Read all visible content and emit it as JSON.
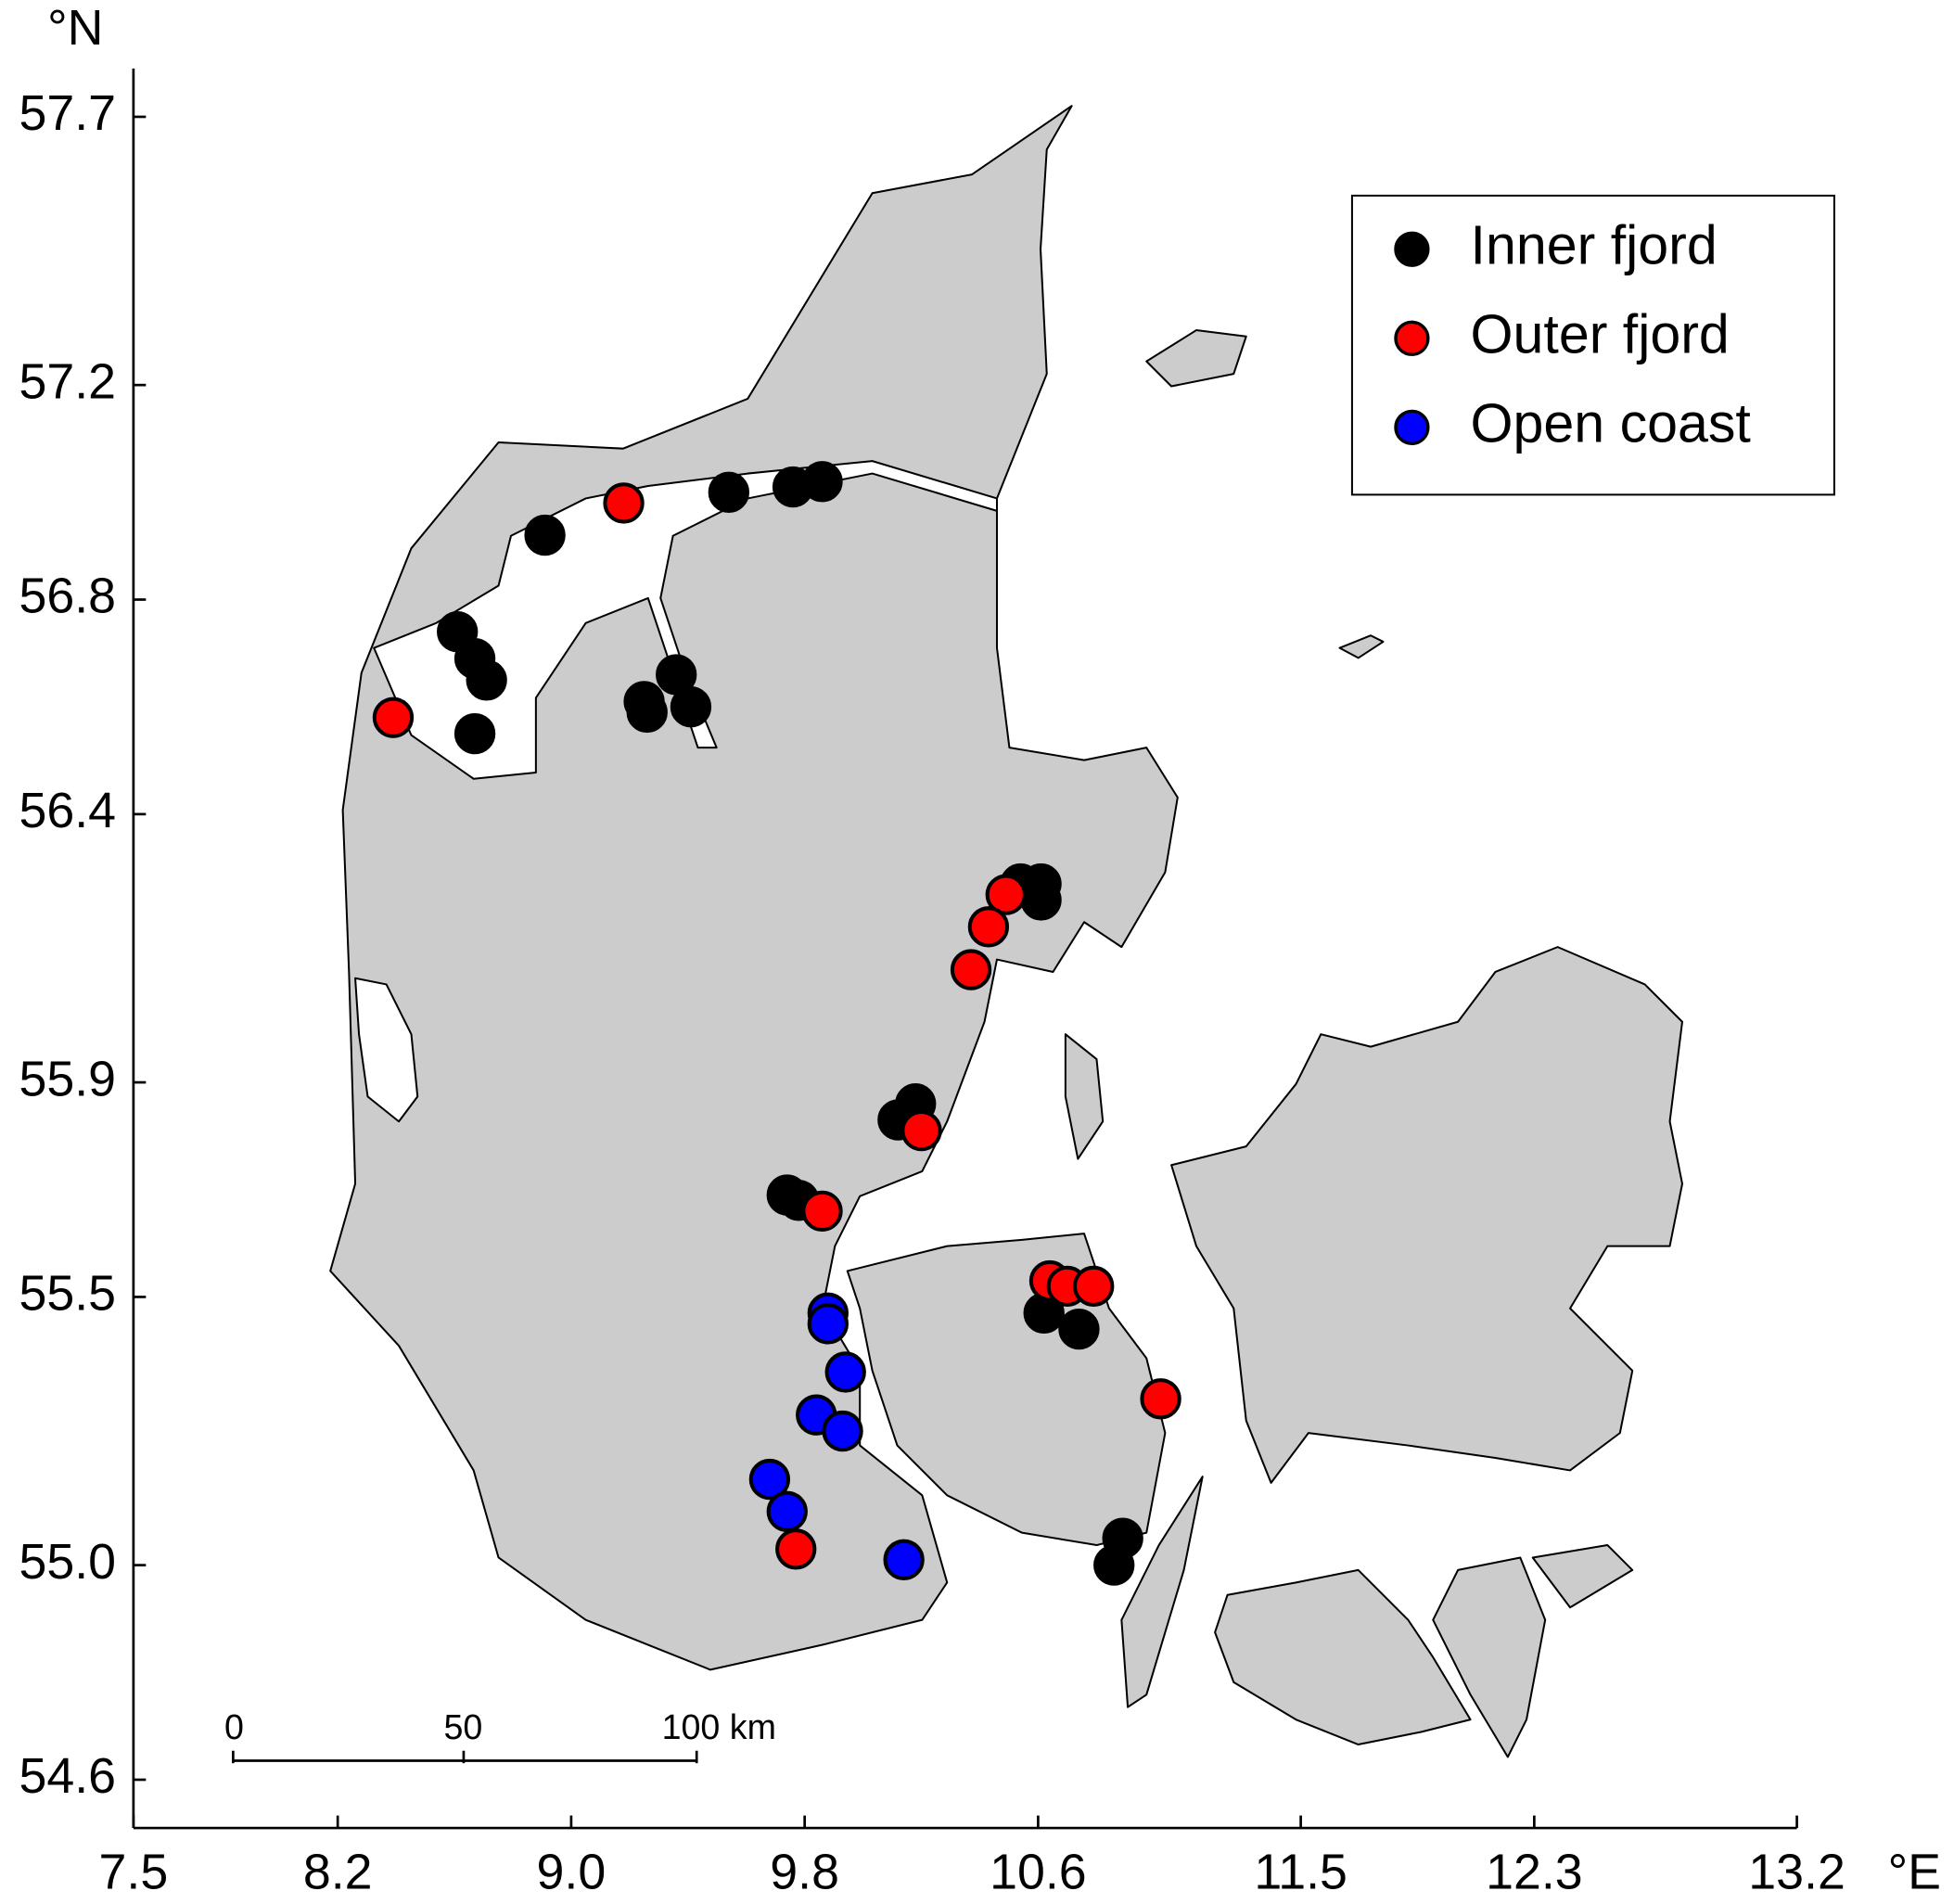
{
  "chart_data": {
    "type": "scatter",
    "x_label": "°E",
    "y_label": "°N",
    "xlim": [
      7.5,
      13.2
    ],
    "ylim": [
      54.51,
      57.79
    ],
    "xticks": [
      7.5,
      8.2,
      {
        "value": 9,
        "label": "9.0"
      },
      9.8,
      10.6,
      11.5,
      12.3,
      13.2
    ],
    "yticks": [
      57.7,
      57.2,
      56.8,
      56.4,
      55.9,
      55.5,
      {
        "value": 55,
        "label": "55.0"
      },
      54.6
    ],
    "legend": "upper right",
    "scale_bar": [
      "0",
      "50",
      "100 km"
    ],
    "series": [
      {
        "name": "Inner fjord",
        "color": "#000000",
        "x": [
          8.91,
          8.61,
          8.67,
          8.71,
          8.67,
          9.25,
          9.26,
          9.36,
          9.41,
          9.54,
          9.76,
          9.86,
          10.54,
          10.61,
          10.61,
          10.18,
          10.12,
          9.74,
          9.78,
          10.62,
          10.74,
          10.89,
          10.86
        ],
        "values": [
          56.92,
          56.74,
          56.69,
          56.65,
          56.55,
          56.61,
          56.59,
          56.66,
          56.6,
          57.0,
          57.01,
          57.02,
          56.27,
          56.27,
          56.24,
          55.86,
          55.83,
          55.69,
          55.68,
          55.47,
          55.44,
          55.05,
          55.0
        ]
      },
      {
        "name": "Outer fjord",
        "color": "#ff0000",
        "x": [
          8.39,
          9.18,
          10.49,
          10.43,
          10.37,
          10.2,
          9.86,
          10.64,
          10.7,
          10.79,
          11.02,
          9.77
        ],
        "values": [
          56.58,
          56.98,
          56.25,
          56.19,
          56.11,
          55.81,
          55.66,
          55.53,
          55.52,
          55.52,
          55.31,
          55.03
        ]
      },
      {
        "name": "Open coast",
        "color": "#0000ff",
        "x": [
          9.88,
          9.88,
          9.94,
          9.84,
          9.93,
          9.68,
          9.74,
          10.14
        ],
        "values": [
          55.47,
          55.45,
          55.36,
          55.28,
          55.25,
          55.16,
          55.1,
          55.01
        ]
      }
    ]
  }
}
